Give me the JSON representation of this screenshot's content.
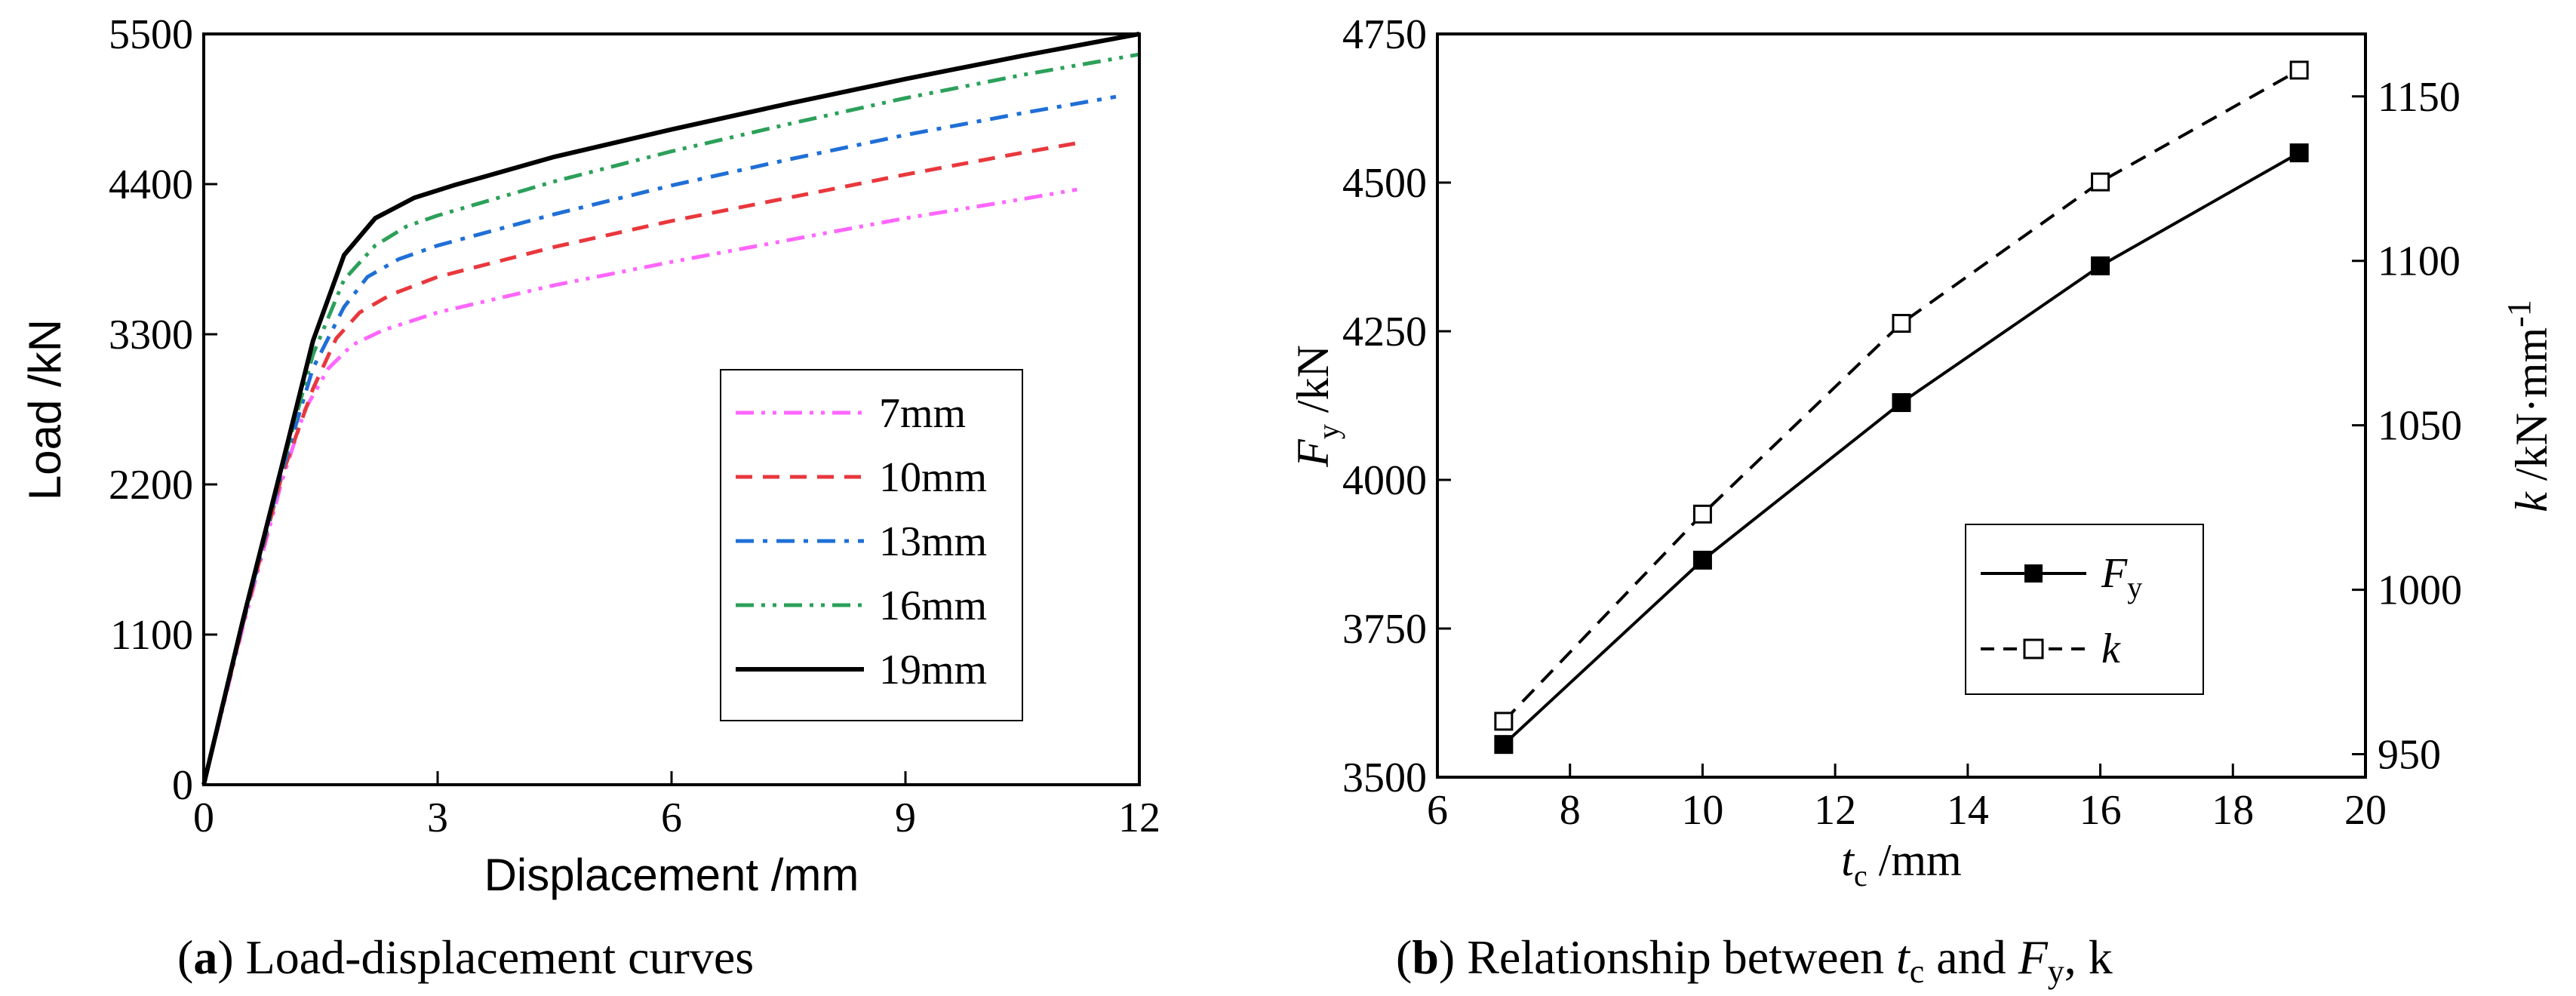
{
  "chart_data": [
    {
      "type": "line",
      "title": "Load-displacement curves",
      "caption_prefix": "(",
      "caption_letter": "a",
      "caption_suffix": ") Load-displacement curves",
      "xlabel": "Displacement  /mm",
      "ylabel": "Load  /kN",
      "xlim": [
        0,
        12
      ],
      "ylim": [
        0,
        5500
      ],
      "xticks": [
        "0",
        "3",
        "6",
        "9",
        "12"
      ],
      "yticks": [
        "0",
        "1100",
        "2200",
        "3300",
        "4400",
        "5500"
      ],
      "legend_position": "bottom-right",
      "series": [
        {
          "name": "7mm",
          "color": "#ff66ff",
          "dash": "dashdotdot",
          "x": [
            0,
            0.5,
            1.0,
            1.3,
            1.6,
            1.9,
            2.3,
            3.0,
            4.5,
            6.0,
            7.5,
            9.0,
            10.5,
            11.2
          ],
          "y": [
            0,
            1150,
            2220,
            2750,
            3050,
            3220,
            3330,
            3460,
            3660,
            3830,
            3990,
            4150,
            4290,
            4360
          ]
        },
        {
          "name": "10mm",
          "color": "#e8383d",
          "dash": "dashed",
          "x": [
            0,
            0.5,
            1.0,
            1.4,
            1.7,
            2.0,
            2.4,
            3.0,
            4.5,
            6.0,
            7.5,
            9.0,
            10.5,
            11.2
          ],
          "y": [
            0,
            1170,
            2260,
            2900,
            3270,
            3460,
            3590,
            3720,
            3940,
            4130,
            4300,
            4470,
            4630,
            4700
          ]
        },
        {
          "name": "13mm",
          "color": "#1f6fd6",
          "dash": "dashdot",
          "x": [
            0,
            0.5,
            1.0,
            1.4,
            1.8,
            2.1,
            2.5,
            3.0,
            4.5,
            6.0,
            7.5,
            9.0,
            10.5,
            11.7
          ],
          "y": [
            0,
            1180,
            2290,
            3050,
            3500,
            3720,
            3850,
            3950,
            4180,
            4390,
            4580,
            4760,
            4920,
            5040
          ]
        },
        {
          "name": "16mm",
          "color": "#2ca05a",
          "dash": "dashdotdot",
          "x": [
            0,
            0.5,
            1.0,
            1.4,
            1.8,
            2.2,
            2.6,
            3.0,
            4.5,
            6.0,
            7.5,
            9.0,
            10.5,
            12.0
          ],
          "y": [
            0,
            1190,
            2310,
            3150,
            3700,
            3950,
            4090,
            4170,
            4420,
            4640,
            4840,
            5030,
            5200,
            5350
          ]
        },
        {
          "name": "19mm",
          "color": "#000000",
          "dash": "solid",
          "x": [
            0,
            0.5,
            1.0,
            1.4,
            1.8,
            2.2,
            2.7,
            3.2,
            4.5,
            6.0,
            7.5,
            9.0,
            10.5,
            12.0
          ],
          "y": [
            0,
            1200,
            2330,
            3250,
            3880,
            4150,
            4300,
            4390,
            4600,
            4800,
            4990,
            5170,
            5340,
            5500
          ]
        }
      ]
    },
    {
      "type": "line",
      "title": "Relationship between tc and Fy, k",
      "caption_prefix": "(",
      "caption_letter": "b",
      "caption_text": ") Relationship between ",
      "caption_tc_var": "t",
      "caption_tc_sub": "c",
      "caption_and": " and ",
      "caption_fy_var": "F",
      "caption_fy_sub": "y",
      "caption_k": ", k",
      "xlabel_var": "t",
      "xlabel_sub": "c",
      "xlabel_unit": "  /mm",
      "ylabel_var": "F",
      "ylabel_sub": "y",
      "ylabel_unit": " /kN",
      "y2label_var": "k",
      "y2label_unit": " /kN·mm",
      "y2label_sup": "-1",
      "xlim": [
        6,
        20
      ],
      "ylim": [
        3500,
        4750
      ],
      "y2lim": [
        943,
        1169
      ],
      "xticks": [
        "6",
        "8",
        "10",
        "12",
        "14",
        "16",
        "18",
        "20"
      ],
      "yticks": [
        "3500",
        "3750",
        "4000",
        "4250",
        "4500",
        "4750"
      ],
      "y2ticks": [
        "950",
        "1000",
        "1050",
        "1100",
        "1150"
      ],
      "legend_position": "center-right",
      "x": [
        7,
        10,
        13,
        16,
        19
      ],
      "series": [
        {
          "name": "Fy",
          "legend_var": "F",
          "legend_sub": "y",
          "axis": "left",
          "marker": "filled-square",
          "dash": "solid",
          "values": [
            3555,
            3865,
            4130,
            4360,
            4550
          ]
        },
        {
          "name": "k",
          "legend_var": "k",
          "axis": "right",
          "marker": "open-square",
          "dash": "dashed",
          "values": [
            960,
            1023,
            1081,
            1124,
            1158
          ]
        }
      ]
    }
  ]
}
